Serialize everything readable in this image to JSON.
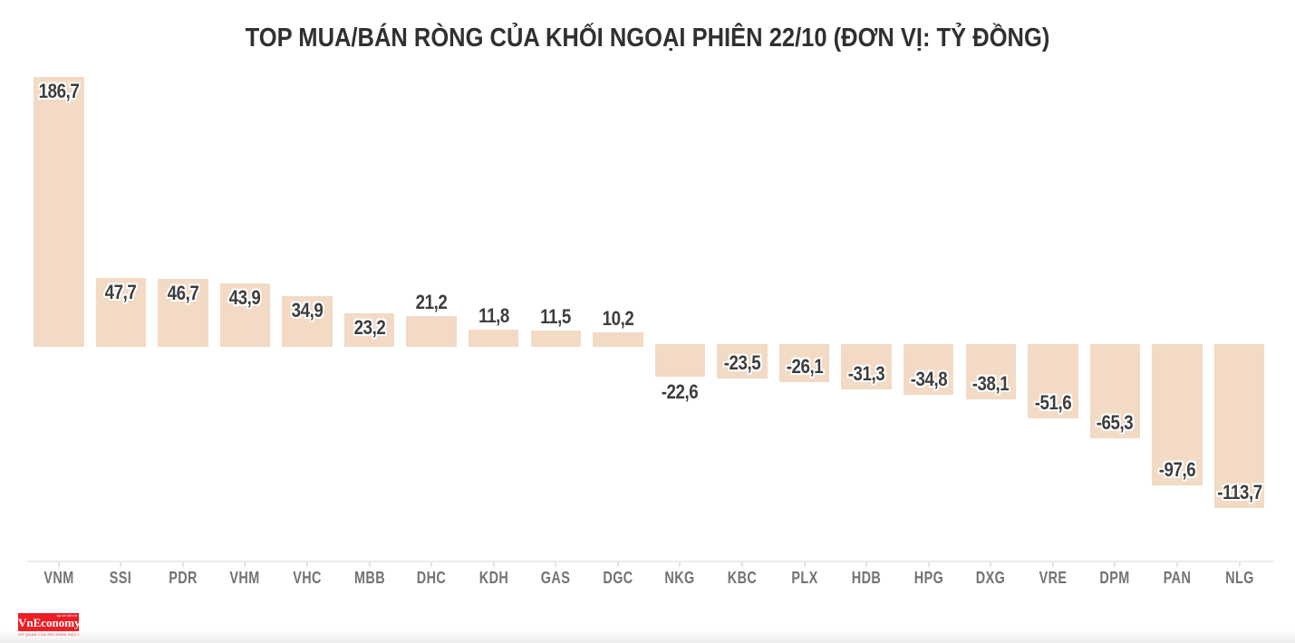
{
  "chart_data": {
    "type": "bar",
    "title": "TOP MUA/BÁN RÒNG CỦA KHỐI NGOẠI PHIÊN 22/10 (ĐƠN VỊ: TỶ ĐỒNG)",
    "unit": "tỷ đồng",
    "categories": [
      "VNM",
      "SSI",
      "PDR",
      "VHM",
      "VHC",
      "MBB",
      "DHC",
      "KDH",
      "GAS",
      "DGC",
      "NKG",
      "KBC",
      "PLX",
      "HDB",
      "HPG",
      "DXG",
      "VRE",
      "DPM",
      "PAN",
      "NLG"
    ],
    "values": [
      186.7,
      47.7,
      46.7,
      43.9,
      34.9,
      23.2,
      21.2,
      11.8,
      11.5,
      10.2,
      -22.6,
      -23.5,
      -26.1,
      -31.3,
      -34.8,
      -38.1,
      -51.6,
      -65.3,
      -97.6,
      -113.7
    ],
    "value_labels": [
      "186,7",
      "47,7",
      "46,7",
      "43,9",
      "34,9",
      "23,2",
      "21,2",
      "11,8",
      "11,5",
      "10,2",
      "-22,6",
      "-23,5",
      "-26,1",
      "-31,3",
      "-34,8",
      "-38,1",
      "-51,6",
      "-65,3",
      "-97,6",
      "-113,7"
    ],
    "xlabel": "",
    "ylabel": "",
    "ylim": [
      -120,
      190
    ],
    "baseline": 0,
    "grid": false,
    "legend": false,
    "bar_color": "#f2dac5",
    "value_label_color": "#3d3d3d",
    "category_label_color": "#737373",
    "title_color": "#303030",
    "axis_line_color": "#ececec"
  },
  "footer": {
    "logo": {
      "name": "VnEconomy",
      "box_color": "#ee1c25",
      "top_text": "tạp chí điện tử",
      "tagline": "CƠ QUAN CỦA HỘI KHOA HỌC KINH TẾ VIỆT NAM"
    }
  }
}
